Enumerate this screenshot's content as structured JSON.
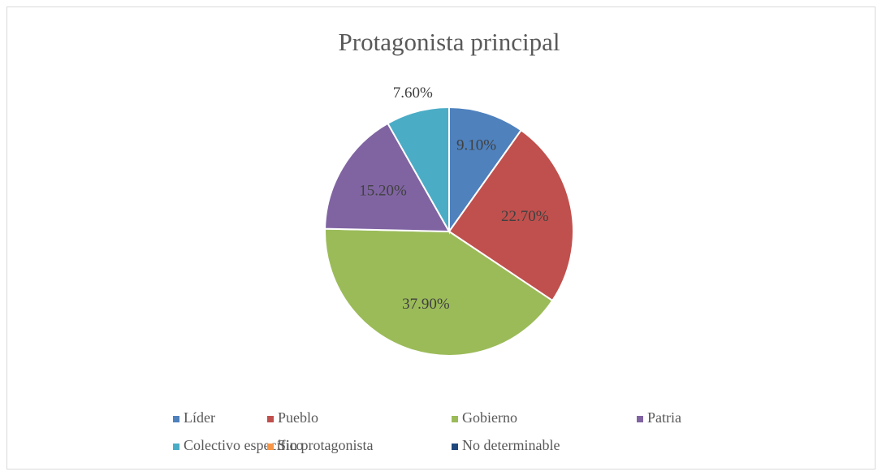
{
  "chart_data": {
    "type": "pie",
    "title": "Protagonista principal",
    "categories": [
      "Líder",
      "Pueblo",
      "Gobierno",
      "Patria",
      "Colectivo específico",
      "Sin protagonista",
      "No determinable"
    ],
    "values": [
      9.1,
      22.7,
      37.9,
      15.2,
      7.6,
      0,
      0
    ],
    "value_labels": [
      "9.10%",
      "22.70%",
      "37.90%",
      "15.20%",
      "7.60%",
      null,
      null
    ],
    "colors": [
      "#4f81bd",
      "#c0504d",
      "#9bbb59",
      "#8064a2",
      "#4bacc6",
      "#f79646",
      "#1f497d"
    ],
    "legend": "bottom"
  }
}
